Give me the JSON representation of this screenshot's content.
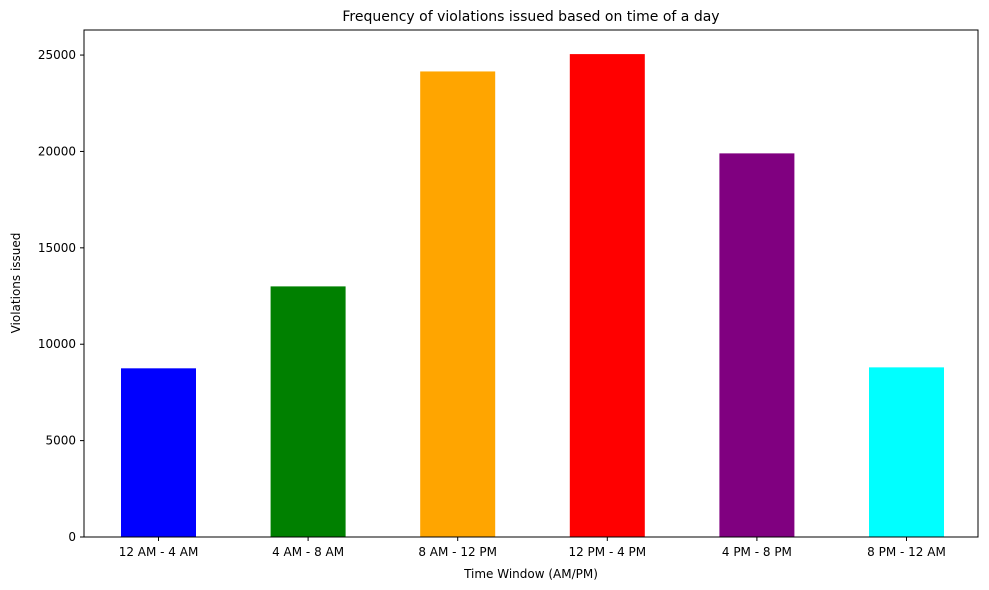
{
  "chart_data": {
    "type": "bar",
    "title": "Frequency of violations issued based on time of a day",
    "xlabel": "Time Window (AM/PM)",
    "ylabel": "Violations issued",
    "categories": [
      "12 AM - 4 AM",
      "4 AM - 8 AM",
      "8 AM - 12 PM",
      "12 PM - 4 PM",
      "4 PM - 8 PM",
      "8 PM - 12 AM"
    ],
    "values": [
      8750,
      13000,
      24150,
      25050,
      19900,
      8800
    ],
    "colors": [
      "#0000ff",
      "#008000",
      "#ffa500",
      "#ff0000",
      "#800080",
      "#00ffff"
    ],
    "ylim": [
      0,
      26300
    ],
    "yticks": [
      0,
      5000,
      10000,
      15000,
      20000,
      25000
    ],
    "ytick_labels": [
      "0",
      "5000",
      "10000",
      "15000",
      "20000",
      "25000"
    ],
    "grid": false,
    "legend": false
  }
}
